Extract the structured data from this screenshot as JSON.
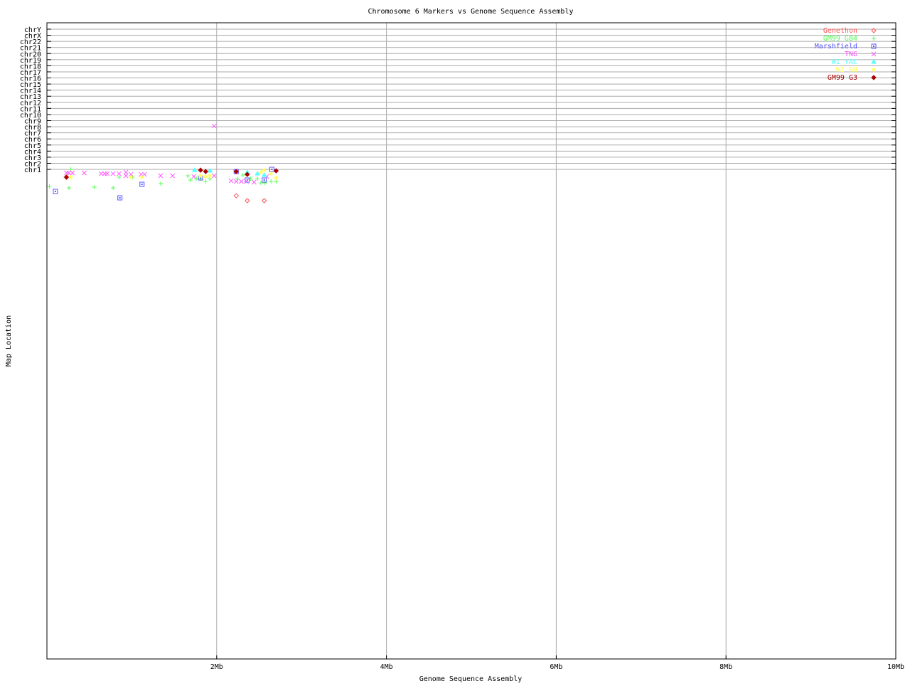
{
  "chart_data": {
    "type": "scatter",
    "title": "Chromosome 6 Markers vs Genome Sequence Assembly",
    "xlabel": "Genome Sequence Assembly",
    "ylabel": "Map Location",
    "xlim": [
      0,
      10
    ],
    "x_unit": "Mb",
    "x_ticks": [
      {
        "v": 2,
        "label": "2Mb"
      },
      {
        "v": 4,
        "label": "4Mb"
      },
      {
        "v": 6,
        "label": "6Mb"
      },
      {
        "v": 8,
        "label": "8Mb"
      },
      {
        "v": 10,
        "label": "10Mb"
      }
    ],
    "ylim": [
      -79.3,
      25.05
    ],
    "y_ticks": [
      "chr1",
      "chr2",
      "chr3",
      "chr4",
      "chr5",
      "chr6",
      "chr7",
      "chr8",
      "chr9",
      "chr10",
      "chr11",
      "chr12",
      "chr13",
      "chr14",
      "chr15",
      "chr16",
      "chr17",
      "chr18",
      "chr19",
      "chr20",
      "chr21",
      "chr22",
      "chrX",
      "chrY"
    ],
    "grid": true,
    "legend_position": "top-right",
    "series": [
      {
        "name": "Genethon",
        "color": "#ff5555",
        "marker": "diamond",
        "points": [
          [
            2.23,
            -3.32
          ],
          [
            2.36,
            -4.13
          ],
          [
            2.56,
            -4.13
          ]
        ]
      },
      {
        "name": "GM99 GB4",
        "color": "#55ff55",
        "marker": "plus",
        "points": [
          [
            0.28,
            1.0
          ],
          [
            0.22,
            -0.28
          ],
          [
            0.85,
            -0.28
          ],
          [
            1.01,
            -0.28
          ],
          [
            0.03,
            -1.8
          ],
          [
            0.26,
            -2.03
          ],
          [
            0.56,
            -1.92
          ],
          [
            0.78,
            -2.03
          ],
          [
            1.34,
            -1.33
          ],
          [
            1.66,
            -0.05
          ],
          [
            1.69,
            -0.75
          ],
          [
            1.76,
            -0.52
          ],
          [
            1.81,
            -0.52
          ],
          [
            1.87,
            -0.98
          ],
          [
            1.92,
            -0.52
          ],
          [
            2.24,
            -0.52
          ],
          [
            2.31,
            0.07
          ],
          [
            2.4,
            -0.52
          ],
          [
            2.48,
            -0.52
          ],
          [
            2.52,
            -1.22
          ],
          [
            2.57,
            -1.22
          ],
          [
            2.64,
            -0.98
          ],
          [
            2.7,
            -0.98
          ]
        ]
      },
      {
        "name": "Marshfield",
        "color": "#5555ff",
        "marker": "square",
        "points": [
          [
            0.1,
            -2.62
          ],
          [
            0.86,
            -3.67
          ],
          [
            1.12,
            -1.45
          ],
          [
            1.81,
            -0.4
          ],
          [
            2.23,
            0.65
          ],
          [
            2.36,
            -0.75
          ],
          [
            2.56,
            -0.75
          ],
          [
            2.65,
            1.0
          ]
        ]
      },
      {
        "name": "TNG",
        "color": "#ff55ff",
        "marker": "x",
        "points": [
          [
            0.23,
            0.42
          ],
          [
            0.26,
            0.42
          ],
          [
            0.3,
            0.42
          ],
          [
            0.44,
            0.42
          ],
          [
            0.64,
            0.3
          ],
          [
            0.68,
            0.3
          ],
          [
            0.71,
            0.3
          ],
          [
            0.78,
            0.3
          ],
          [
            0.85,
            0.3
          ],
          [
            0.93,
            0.53
          ],
          [
            0.93,
            -0.05
          ],
          [
            0.99,
            0.18
          ],
          [
            1.11,
            0.18
          ],
          [
            1.15,
            0.18
          ],
          [
            1.34,
            -0.05
          ],
          [
            1.48,
            -0.05
          ],
          [
            1.73,
            -0.17
          ],
          [
            1.97,
            -0.05
          ],
          [
            1.97,
            8.12
          ],
          [
            2.17,
            -0.87
          ],
          [
            2.23,
            -0.98
          ],
          [
            2.29,
            -0.98
          ],
          [
            2.35,
            -0.98
          ],
          [
            2.44,
            -1.1
          ],
          [
            2.59,
            -0.17
          ]
        ]
      },
      {
        "name": "WI YAC",
        "color": "#55ffff",
        "marker": "triangle",
        "points": [
          [
            1.74,
            0.88
          ],
          [
            1.92,
            0.77
          ],
          [
            2.36,
            0.53
          ],
          [
            2.48,
            0.3
          ],
          [
            2.56,
            0.07
          ]
        ]
      },
      {
        "name": "WI RH",
        "color": "#ffff55",
        "marker": "star",
        "points": [
          [
            0.28,
            -0.28
          ],
          [
            0.99,
            -0.28
          ],
          [
            1.12,
            -0.28
          ],
          [
            1.81,
            -0.05
          ],
          [
            1.87,
            -0.17
          ],
          [
            1.92,
            -0.05
          ],
          [
            2.52,
            0.53
          ],
          [
            2.56,
            0.88
          ],
          [
            2.64,
            0.3
          ],
          [
            2.7,
            -0.4
          ]
        ]
      },
      {
        "name": "GM99 G3",
        "color": "#aa0000",
        "marker": "diamond",
        "points": [
          [
            0.23,
            -0.28
          ],
          [
            1.81,
            0.88
          ],
          [
            1.87,
            0.65
          ],
          [
            2.23,
            0.65
          ],
          [
            2.36,
            0.18
          ],
          [
            2.7,
            0.77
          ]
        ]
      }
    ]
  }
}
